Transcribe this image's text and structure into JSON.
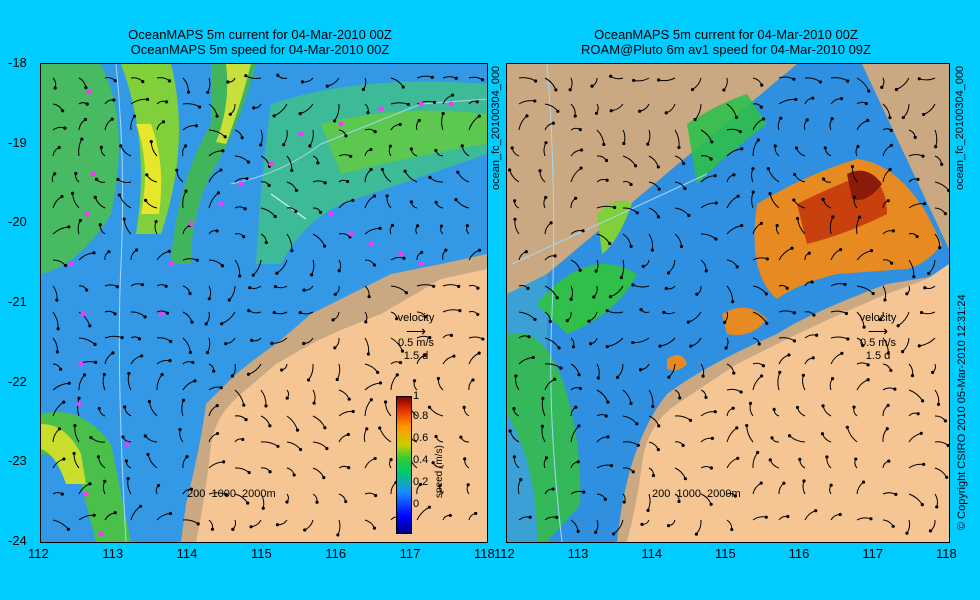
{
  "colors": {
    "background": "#00ccff",
    "land": "#f5c594",
    "shelf": "#c9a882",
    "ocean_low": "#3380e6",
    "ocean_mid": "#1ab84a",
    "ocean_high": "#d81e0a"
  },
  "left_panel": {
    "title_line1": "OceanMAPS 5m current for 04-Mar-2010 00Z",
    "title_line2": "OceanMAPS 5m speed for 04-Mar-2010 00Z",
    "velocity_label": "velocity",
    "velocity_speed": "0.5 m/s",
    "velocity_time": "1.5 d",
    "depth_labels": "200  1000  2000m",
    "colorbar_label": "speed (m/s)",
    "colorbar_ticks": [
      "1",
      "0.8",
      "0.6",
      "0.4",
      "0.2",
      "0"
    ],
    "side_label": "ocean_fc_20100304_000"
  },
  "right_panel": {
    "title_line1": "OceanMAPS 5m current for 04-Mar-2010 00Z",
    "title_line2": "ROAM@Pluto 6m av1 speed for 04-Mar-2010 09Z",
    "velocity_label": "velocity",
    "velocity_speed": "0.5 m/s",
    "velocity_time": "1.5 d",
    "depth_labels": "200  1000  2000m",
    "side_label": "ocean_fc_20100304_000"
  },
  "axes": {
    "x_ticks": [
      "112",
      "113",
      "114",
      "115",
      "116",
      "117",
      "118"
    ],
    "y_ticks": [
      "-18",
      "-19",
      "-20",
      "-21",
      "-22",
      "-23",
      "-24"
    ]
  },
  "copyright": "© Copyright CSIRO 2010   05-Mar-2010 12:31:24"
}
